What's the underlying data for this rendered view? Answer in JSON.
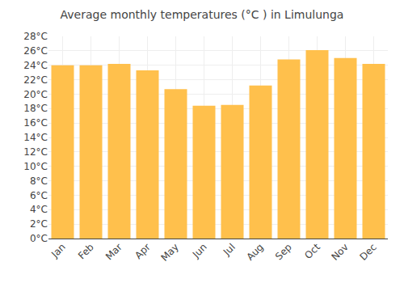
{
  "chart_data": {
    "type": "bar",
    "title": "Average monthly temperatures (°C ) in Limulunga",
    "categories": [
      "Jan",
      "Feb",
      "Mar",
      "Apr",
      "May",
      "Jun",
      "Jul",
      "Aug",
      "Sep",
      "Oct",
      "Nov",
      "Dec"
    ],
    "values": [
      24.0,
      24.0,
      24.2,
      23.3,
      20.7,
      18.4,
      18.5,
      21.2,
      24.8,
      26.1,
      25.0,
      24.2
    ],
    "color": "#FFC04C",
    "ylim": [
      0,
      28
    ],
    "yticks": [
      {
        "value": 0,
        "label": "0°C"
      },
      {
        "value": 2,
        "label": "2°C"
      },
      {
        "value": 4,
        "label": "4°C"
      },
      {
        "value": 6,
        "label": "6°C"
      },
      {
        "value": 8,
        "label": "8°C"
      },
      {
        "value": 10,
        "label": "10°C"
      },
      {
        "value": 12,
        "label": "12°C"
      },
      {
        "value": 14,
        "label": "14°C"
      },
      {
        "value": 16,
        "label": "16°C"
      },
      {
        "value": 18,
        "label": "18°C"
      },
      {
        "value": 20,
        "label": "20°C"
      },
      {
        "value": 22,
        "label": "22°C"
      },
      {
        "value": 24,
        "label": "24°C"
      },
      {
        "value": 26,
        "label": "26°C"
      },
      {
        "value": 28,
        "label": "28°C"
      }
    ],
    "grid": true
  }
}
